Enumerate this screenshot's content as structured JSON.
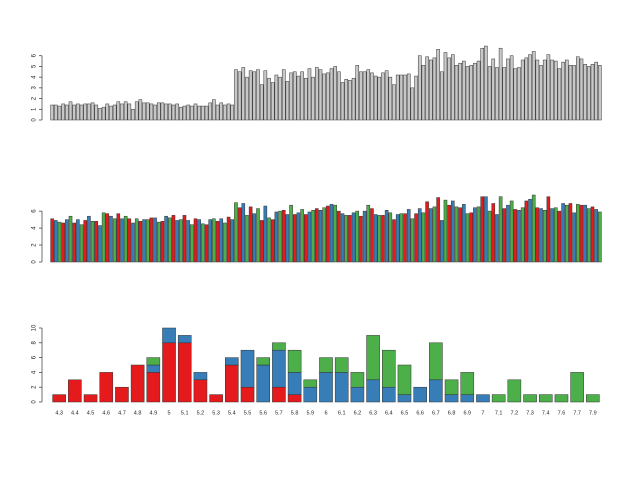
{
  "chart_data": [
    {
      "type": "bar",
      "color": "#c8c8c8",
      "values": [
        1.4,
        1.4,
        1.3,
        1.5,
        1.4,
        1.7,
        1.4,
        1.5,
        1.4,
        1.5,
        1.5,
        1.6,
        1.4,
        1.1,
        1.2,
        1.5,
        1.3,
        1.4,
        1.7,
        1.5,
        1.7,
        1.5,
        1.0,
        1.7,
        1.9,
        1.6,
        1.6,
        1.5,
        1.4,
        1.6,
        1.6,
        1.5,
        1.5,
        1.4,
        1.5,
        1.2,
        1.3,
        1.4,
        1.3,
        1.5,
        1.3,
        1.3,
        1.3,
        1.6,
        1.9,
        1.4,
        1.6,
        1.4,
        1.5,
        1.4,
        4.7,
        4.5,
        4.9,
        4.0,
        4.6,
        4.5,
        4.7,
        3.3,
        4.6,
        3.9,
        3.5,
        4.2,
        4.0,
        4.7,
        3.6,
        4.4,
        4.5,
        4.1,
        4.5,
        3.9,
        4.8,
        4.0,
        4.9,
        4.7,
        4.3,
        4.4,
        4.8,
        5.0,
        4.5,
        3.5,
        3.8,
        3.7,
        3.9,
        5.1,
        4.5,
        4.5,
        4.7,
        4.4,
        4.1,
        4.0,
        4.4,
        4.6,
        4.0,
        3.3,
        4.2,
        4.2,
        4.2,
        4.3,
        3.0,
        4.1,
        6.0,
        5.1,
        5.9,
        5.6,
        5.8,
        6.6,
        4.5,
        6.3,
        5.8,
        6.1,
        5.1,
        5.3,
        5.5,
        5.0,
        5.1,
        5.3,
        5.5,
        6.7,
        6.9,
        5.0,
        5.7,
        4.9,
        6.7,
        4.9,
        5.7,
        6.0,
        4.8,
        4.9,
        5.6,
        5.8,
        6.1,
        6.4,
        5.6,
        5.1,
        5.6,
        6.1,
        5.6,
        5.5,
        4.8,
        5.4,
        5.6,
        5.1,
        5.1,
        5.9,
        5.7,
        5.2,
        5.0,
        5.2,
        5.4,
        5.1
      ],
      "ylim": [
        0,
        7
      ],
      "yticks": [
        0,
        1,
        2,
        3,
        4,
        5,
        6
      ]
    },
    {
      "type": "bar",
      "colors": [
        "#e41a1c",
        "#377eb8",
        "#4daf4a"
      ],
      "values": [
        5.1,
        4.9,
        4.7,
        4.6,
        5.0,
        5.4,
        4.6,
        5.0,
        4.4,
        4.9,
        5.4,
        4.8,
        4.8,
        4.3,
        5.8,
        5.7,
        5.4,
        5.1,
        5.7,
        5.1,
        5.4,
        5.1,
        4.6,
        5.1,
        4.8,
        5.0,
        5.0,
        5.2,
        5.2,
        4.7,
        4.8,
        5.4,
        5.2,
        5.5,
        4.9,
        5.0,
        5.5,
        4.9,
        4.4,
        5.1,
        5.0,
        4.5,
        4.4,
        5.0,
        5.1,
        4.8,
        5.1,
        4.6,
        5.3,
        5.0,
        7.0,
        6.4,
        6.9,
        5.5,
        6.5,
        5.7,
        6.3,
        4.9,
        6.6,
        5.2,
        5.0,
        5.9,
        6.0,
        6.1,
        5.6,
        6.7,
        5.6,
        5.8,
        6.2,
        5.6,
        5.9,
        6.1,
        6.3,
        6.1,
        6.4,
        6.6,
        6.8,
        6.7,
        6.0,
        5.7,
        5.5,
        5.5,
        5.8,
        6.0,
        5.4,
        6.0,
        6.7,
        6.3,
        5.6,
        5.5,
        5.5,
        6.1,
        5.8,
        5.0,
        5.6,
        5.7,
        5.7,
        6.2,
        5.1,
        5.7,
        6.3,
        5.8,
        7.1,
        6.3,
        6.5,
        7.6,
        4.9,
        7.3,
        6.7,
        7.2,
        6.5,
        6.4,
        6.8,
        5.7,
        5.8,
        6.4,
        6.5,
        7.7,
        7.7,
        6.0,
        6.9,
        5.6,
        7.7,
        6.3,
        6.7,
        7.2,
        6.2,
        6.1,
        6.4,
        7.2,
        7.4,
        7.9,
        6.4,
        6.3,
        6.1,
        7.7,
        6.3,
        6.4,
        6.0,
        6.9,
        6.7,
        6.9,
        5.8,
        6.8,
        6.7,
        6.7,
        6.3,
        6.5,
        6.2,
        5.9
      ],
      "ylim": [
        0,
        7.9
      ],
      "yticks": [
        0,
        2,
        4,
        6
      ]
    },
    {
      "type": "stacked_bar",
      "categories": [
        "4.3",
        "4.4",
        "4.5",
        "4.6",
        "4.7",
        "4.8",
        "4.9",
        "5",
        "5.1",
        "5.2",
        "5.3",
        "5.4",
        "5.5",
        "5.6",
        "5.7",
        "5.8",
        "5.9",
        "6",
        "6.1",
        "6.2",
        "6.3",
        "6.4",
        "6.5",
        "6.6",
        "6.7",
        "6.8",
        "6.9",
        "7",
        "7.1",
        "7.2",
        "7.3",
        "7.4",
        "7.6",
        "7.7",
        "7.9"
      ],
      "series": [
        {
          "color": "#e41a1c",
          "values": [
            1,
            3,
            1,
            4,
            2,
            5,
            4,
            8,
            8,
            3,
            1,
            5,
            2,
            0,
            2,
            1,
            0,
            0,
            0,
            0,
            0,
            0,
            0,
            0,
            0,
            0,
            0,
            0,
            0,
            0,
            0,
            0,
            0,
            0,
            0
          ]
        },
        {
          "color": "#377eb8",
          "values": [
            0,
            0,
            0,
            0,
            0,
            0,
            1,
            2,
            1,
            1,
            0,
            1,
            5,
            5,
            5,
            3,
            2,
            4,
            4,
            2,
            3,
            2,
            1,
            2,
            3,
            1,
            1,
            1,
            0,
            0,
            0,
            0,
            0,
            0,
            0
          ]
        },
        {
          "color": "#4daf4a",
          "values": [
            0,
            0,
            0,
            0,
            0,
            0,
            1,
            0,
            0,
            0,
            0,
            0,
            0,
            1,
            1,
            3,
            1,
            2,
            2,
            2,
            6,
            5,
            4,
            0,
            5,
            2,
            3,
            0,
            1,
            3,
            1,
            1,
            1,
            4,
            1
          ]
        }
      ],
      "ylim": [
        0,
        10
      ],
      "yticks": [
        0,
        2,
        4,
        6,
        8,
        10
      ]
    }
  ]
}
